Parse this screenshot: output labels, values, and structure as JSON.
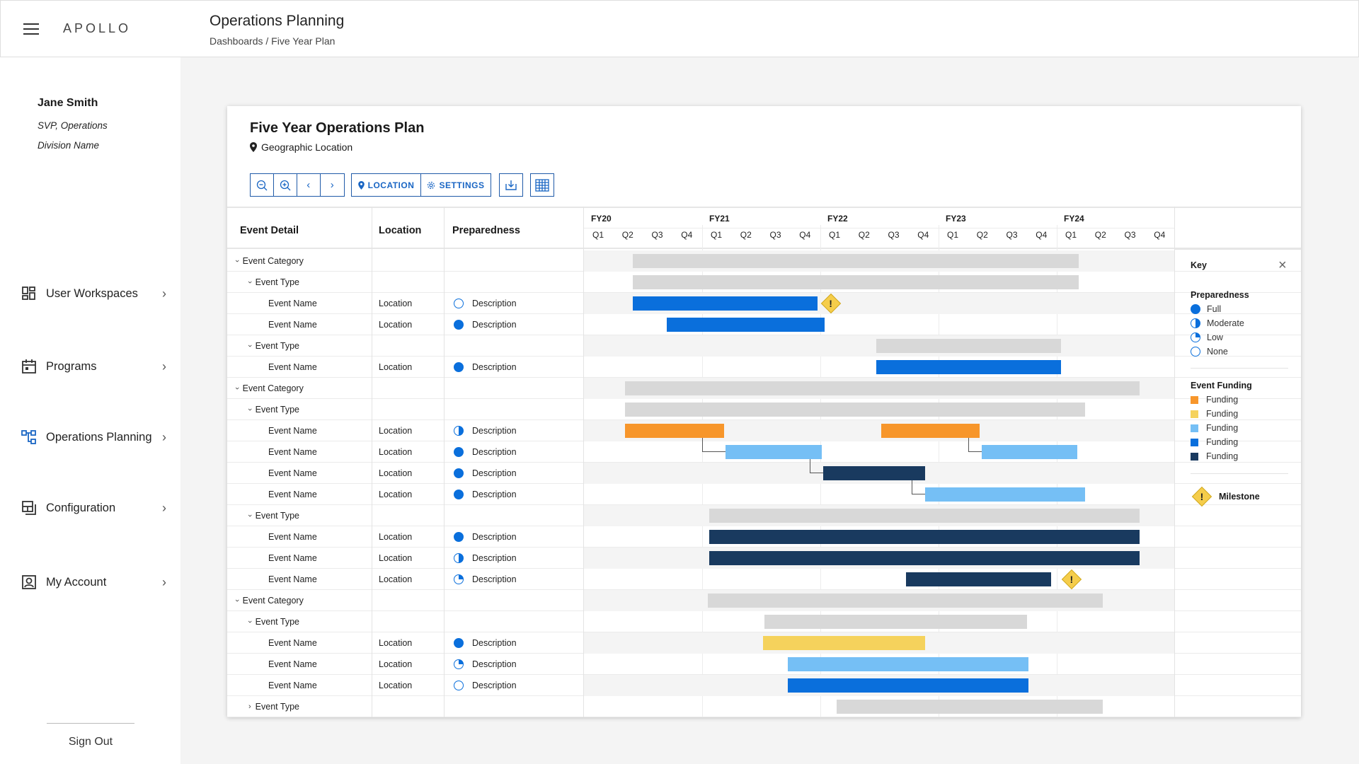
{
  "app": {
    "name": "APOLLO"
  },
  "header": {
    "title": "Operations Planning",
    "breadcrumb": "Dashboards / Five Year Plan"
  },
  "user": {
    "name": "Jane Smith",
    "role": "SVP, Operations",
    "division": "Division Name"
  },
  "nav": [
    {
      "label": "User Workspaces",
      "icon": "dashboard-grid-icon"
    },
    {
      "label": "Programs",
      "icon": "calendar-icon"
    },
    {
      "label": "Operations Planning",
      "icon": "hierarchy-icon",
      "active": true
    },
    {
      "label": "Configuration",
      "icon": "layers-icon"
    },
    {
      "label": "My Account",
      "icon": "account-icon"
    }
  ],
  "signout": "Sign Out",
  "card": {
    "title": "Five Year Operations Plan",
    "location": "Geographic Location",
    "toolbar": {
      "location": "LOCATION",
      "settings": "SETTINGS"
    }
  },
  "table": {
    "columns": {
      "detail": "Event Detail",
      "location": "Location",
      "preparedness": "Preparedness"
    },
    "fiscal_years": [
      "FY20",
      "FY21",
      "FY22",
      "FY23",
      "FY24"
    ],
    "quarters": [
      "Q1",
      "Q2",
      "Q3",
      "Q4"
    ],
    "rows": [
      {
        "level": 0,
        "label": "Event Category",
        "expanded": true
      },
      {
        "level": 1,
        "label": "Event Type",
        "expanded": true
      },
      {
        "level": 2,
        "label": "Event Name",
        "location": "Location",
        "prep": "none",
        "desc": "Description"
      },
      {
        "level": 2,
        "label": "Event Name",
        "location": "Location",
        "prep": "full",
        "desc": "Description"
      },
      {
        "level": 1,
        "label": "Event Type",
        "expanded": true
      },
      {
        "level": 2,
        "label": "Event Name",
        "location": "Location",
        "prep": "full",
        "desc": "Description"
      },
      {
        "level": 0,
        "label": "Event Category",
        "expanded": true
      },
      {
        "level": 1,
        "label": "Event Type",
        "expanded": true
      },
      {
        "level": 2,
        "label": "Event Name",
        "location": "Location",
        "prep": "moderate",
        "desc": "Description"
      },
      {
        "level": 2,
        "label": "Event Name",
        "location": "Location",
        "prep": "full",
        "desc": "Description"
      },
      {
        "level": 2,
        "label": "Event Name",
        "location": "Location",
        "prep": "full",
        "desc": "Description"
      },
      {
        "level": 2,
        "label": "Event Name",
        "location": "Location",
        "prep": "full",
        "desc": "Description"
      },
      {
        "level": 1,
        "label": "Event Type",
        "expanded": true
      },
      {
        "level": 2,
        "label": "Event Name",
        "location": "Location",
        "prep": "full",
        "desc": "Description"
      },
      {
        "level": 2,
        "label": "Event Name",
        "location": "Location",
        "prep": "moderate",
        "desc": "Description"
      },
      {
        "level": 2,
        "label": "Event Name",
        "location": "Location",
        "prep": "low",
        "desc": "Description"
      },
      {
        "level": 0,
        "label": "Event Category",
        "expanded": true
      },
      {
        "level": 1,
        "label": "Event Type",
        "expanded": true
      },
      {
        "level": 2,
        "label": "Event Name",
        "location": "Location",
        "prep": "full",
        "desc": "Description"
      },
      {
        "level": 2,
        "label": "Event Name",
        "location": "Location",
        "prep": "low",
        "desc": "Description"
      },
      {
        "level": 2,
        "label": "Event Name",
        "location": "Location",
        "prep": "none",
        "desc": "Description"
      },
      {
        "level": 1,
        "label": "Event Type",
        "expanded": false
      }
    ]
  },
  "chart_data": {
    "type": "gantt",
    "timeline": {
      "start": "FY20 Q1",
      "end": "FY24 Q4",
      "unit": "quarter"
    },
    "colors": {
      "summary": "#d8d8d8",
      "blue": "#0a6fdc",
      "orange": "#f7962b",
      "yellow": "#f5d25c",
      "light_blue": "#75bff5",
      "navy": "#193a5f"
    },
    "bars": [
      {
        "row": 0,
        "start": 1.65,
        "end": 16.75,
        "color": "summary"
      },
      {
        "row": 1,
        "start": 1.65,
        "end": 16.75,
        "color": "summary"
      },
      {
        "row": 2,
        "start": 1.65,
        "end": 7.9,
        "color": "blue"
      },
      {
        "row": 3,
        "start": 2.8,
        "end": 8.15,
        "color": "blue"
      },
      {
        "row": 4,
        "start": 9.9,
        "end": 16.15,
        "color": "summary"
      },
      {
        "row": 5,
        "start": 9.9,
        "end": 16.15,
        "color": "blue"
      },
      {
        "row": 6,
        "start": 1.4,
        "end": 18.8,
        "color": "summary"
      },
      {
        "row": 7,
        "start": 1.4,
        "end": 16.95,
        "color": "summary"
      },
      {
        "row": 8,
        "start": 1.4,
        "end": 4.75,
        "color": "orange"
      },
      {
        "row": 9,
        "start": 4.8,
        "end": 8.05,
        "color": "light_blue"
      },
      {
        "row": 10,
        "start": 8.1,
        "end": 11.55,
        "color": "navy"
      },
      {
        "row": 11,
        "start": 11.55,
        "end": 16.95,
        "color": "light_blue"
      },
      {
        "row": 8,
        "start": 10.05,
        "end": 13.4,
        "color": "orange"
      },
      {
        "row": 9,
        "start": 13.45,
        "end": 16.7,
        "color": "light_blue"
      },
      {
        "row": 12,
        "start": 4.25,
        "end": 18.8,
        "color": "summary"
      },
      {
        "row": 13,
        "start": 4.25,
        "end": 18.8,
        "color": "navy"
      },
      {
        "row": 14,
        "start": 4.25,
        "end": 18.8,
        "color": "navy"
      },
      {
        "row": 15,
        "start": 10.9,
        "end": 15.8,
        "color": "navy"
      },
      {
        "row": 16,
        "start": 4.2,
        "end": 17.55,
        "color": "summary"
      },
      {
        "row": 17,
        "start": 6.1,
        "end": 15.0,
        "color": "summary"
      },
      {
        "row": 18,
        "start": 6.05,
        "end": 11.55,
        "color": "yellow"
      },
      {
        "row": 19,
        "start": 6.9,
        "end": 15.05,
        "color": "light_blue"
      },
      {
        "row": 20,
        "start": 6.9,
        "end": 15.05,
        "color": "blue"
      },
      {
        "row": 21,
        "start": 8.55,
        "end": 17.55,
        "color": "summary"
      }
    ],
    "milestones": [
      {
        "row": 2,
        "at": 8.35
      },
      {
        "row": 15,
        "at": 16.5
      }
    ],
    "dependencies": [
      {
        "from_row": 8,
        "from": 4.0,
        "to_row": 9
      },
      {
        "from_row": 9,
        "from": 7.65,
        "to_row": 10
      },
      {
        "from_row": 10,
        "from": 11.1,
        "to_row": 11
      },
      {
        "from_row": 8,
        "from": 13.0,
        "to_row": 9
      }
    ]
  },
  "key": {
    "title": "Key",
    "preparedness_title": "Preparedness",
    "preparedness": [
      "Full",
      "Moderate",
      "Low",
      "None"
    ],
    "funding_title": "Event Funding",
    "funding": [
      {
        "label": "Funding",
        "color": "#f7962b"
      },
      {
        "label": "Funding",
        "color": "#f5d25c"
      },
      {
        "label": "Funding",
        "color": "#75bff5"
      },
      {
        "label": "Funding",
        "color": "#0a6fdc"
      },
      {
        "label": "Funding",
        "color": "#193a5f"
      }
    ],
    "milestone": "Milestone"
  }
}
